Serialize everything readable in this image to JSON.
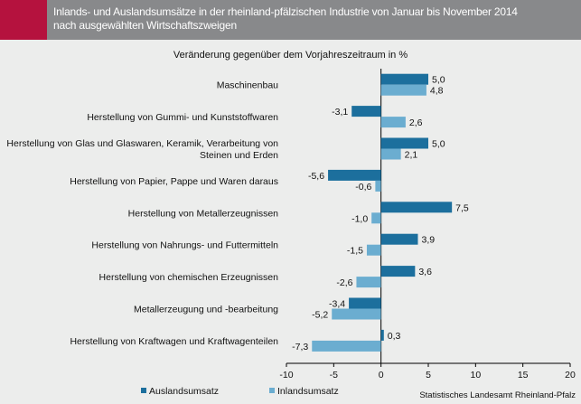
{
  "header": {
    "title_line1": "Inlands- und Auslandsumsätze in der rheinland-pfälzischen Industrie von Januar bis November 2014",
    "title_line2": "nach ausgewählten Wirtschaftszweigen"
  },
  "source": "Statistisches Landesamt Rheinland-Pfalz",
  "chart_data": {
    "type": "bar",
    "orientation": "horizontal",
    "title": "Veränderung gegenüber dem Vorjahreszeitraum  in %",
    "categories": [
      "Maschinenbau",
      "Herstellung von Gummi- und Kunststoffwaren",
      "Herstellung von Glas und Glaswaren, Keramik, Verarbeitung von Steinen und Erden",
      "Herstellung von Papier, Pappe und Waren daraus",
      "Herstellung von Metallerzeugnissen",
      "Herstellung von Nahrungs- und Futtermitteln",
      "Herstellung von chemischen Erzeugnissen",
      "Metallerzeugung und -bearbeitung",
      "Herstellung von Kraftwagen und Kraftwagenteilen"
    ],
    "category_lines": [
      [
        "Maschinenbau"
      ],
      [
        "Herstellung von Gummi- und Kunststoffwaren"
      ],
      [
        "Herstellung von Glas und Glaswaren, Keramik, Verarbeitung von",
        "Steinen und Erden"
      ],
      [
        "Herstellung von Papier, Pappe und Waren daraus"
      ],
      [
        "Herstellung von Metallerzeugnissen"
      ],
      [
        "Herstellung von Nahrungs- und Futtermitteln"
      ],
      [
        "Herstellung von chemischen Erzeugnissen"
      ],
      [
        "Metallerzeugung und -bearbeitung"
      ],
      [
        "Herstellung von Kraftwagen und Kraftwagenteilen"
      ]
    ],
    "series": [
      {
        "name": "Auslandsumsatz",
        "color": "#1c6f9d",
        "values": [
          5.0,
          -3.1,
          5.0,
          -5.6,
          7.5,
          3.9,
          3.6,
          -3.4,
          0.3
        ],
        "labels": [
          "5,0",
          "-3,1",
          "5,0",
          "-5,6",
          "7,5",
          "3,9",
          "3,6",
          "-3,4",
          "0,3"
        ]
      },
      {
        "name": "Inlandsumsatz",
        "color": "#6badd0",
        "values": [
          4.8,
          2.6,
          2.1,
          -0.6,
          -1.0,
          -1.5,
          -2.6,
          -5.2,
          -7.3
        ],
        "labels": [
          "4,8",
          "2,6",
          "2,1",
          "-0,6",
          "-1,0",
          "-1,5",
          "-2,6",
          "-5,2",
          "-7,3"
        ]
      }
    ],
    "xlim": [
      -10,
      20
    ],
    "xticks": [
      -10,
      -5,
      0,
      5,
      10,
      15,
      20
    ],
    "grid": false,
    "legend": "bottom"
  }
}
